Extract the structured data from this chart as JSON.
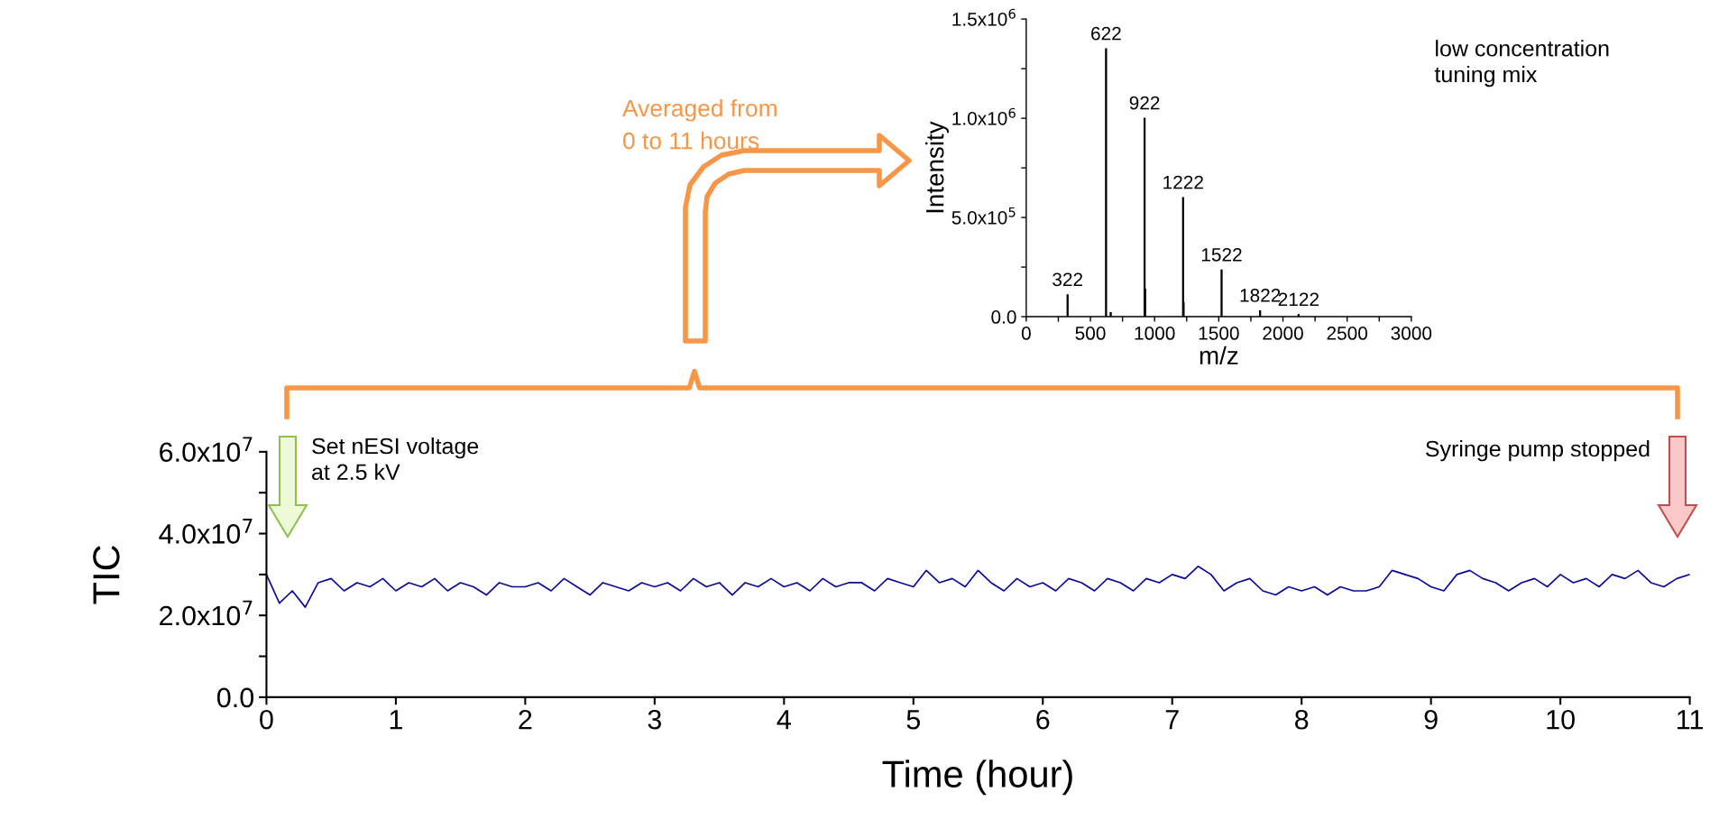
{
  "chart_data": [
    {
      "type": "line",
      "xlabel": "Time (hour)",
      "ylabel": "TIC",
      "x": [
        0.0,
        0.1,
        0.2,
        0.3,
        0.4,
        0.5,
        0.6,
        0.7,
        0.8,
        0.9,
        1.0,
        1.1,
        1.2,
        1.3,
        1.4,
        1.5,
        1.6,
        1.7,
        1.8,
        1.9,
        2.0,
        2.1,
        2.2,
        2.3,
        2.4,
        2.5,
        2.6,
        2.7,
        2.8,
        2.9,
        3.0,
        3.1,
        3.2,
        3.3,
        3.4,
        3.5,
        3.6,
        3.7,
        3.8,
        3.9,
        4.0,
        4.1,
        4.2,
        4.3,
        4.4,
        4.5,
        4.6,
        4.7,
        4.8,
        4.9,
        5.0,
        5.1,
        5.2,
        5.3,
        5.4,
        5.5,
        5.6,
        5.7,
        5.8,
        5.9,
        6.0,
        6.1,
        6.2,
        6.3,
        6.4,
        6.5,
        6.6,
        6.7,
        6.8,
        6.9,
        7.0,
        7.1,
        7.2,
        7.3,
        7.4,
        7.5,
        7.6,
        7.7,
        7.8,
        7.9,
        8.0,
        8.1,
        8.2,
        8.3,
        8.4,
        8.5,
        8.6,
        8.7,
        8.8,
        8.9,
        9.0,
        9.1,
        9.2,
        9.3,
        9.4,
        9.5,
        9.6,
        9.7,
        9.8,
        9.9,
        10.0,
        10.1,
        10.2,
        10.3,
        10.4,
        10.5,
        10.6,
        10.7,
        10.8,
        10.9,
        11.0
      ],
      "series": [
        {
          "color": "#0a0a9a",
          "values": [
            30000000.0,
            23000000.0,
            26000000.0,
            22000000.0,
            28000000.0,
            29000000.0,
            26000000.0,
            28000000.0,
            27000000.0,
            29000000.0,
            26000000.0,
            28000000.0,
            27000000.0,
            29000000.0,
            26000000.0,
            28000000.0,
            27000000.0,
            25000000.0,
            28000000.0,
            27000000.0,
            27000000.0,
            28000000.0,
            26000000.0,
            29000000.0,
            27000000.0,
            25000000.0,
            28000000.0,
            27000000.0,
            26000000.0,
            28000000.0,
            27000000.0,
            28000000.0,
            26000000.0,
            29000000.0,
            27000000.0,
            28000000.0,
            25000000.0,
            28000000.0,
            27000000.0,
            29000000.0,
            27000000.0,
            28000000.0,
            26000000.0,
            29000000.0,
            27000000.0,
            28000000.0,
            28000000.0,
            26000000.0,
            29000000.0,
            28000000.0,
            27000000.0,
            31000000.0,
            28000000.0,
            29000000.0,
            27000000.0,
            31000000.0,
            28000000.0,
            26000000.0,
            29000000.0,
            27000000.0,
            28000000.0,
            26000000.0,
            29000000.0,
            28000000.0,
            26000000.0,
            29000000.0,
            28000000.0,
            26000000.0,
            29000000.0,
            28000000.0,
            30000000.0,
            29000000.0,
            32000000.0,
            30000000.0,
            26000000.0,
            28000000.0,
            29000000.0,
            26000000.0,
            25000000.0,
            27000000.0,
            26000000.0,
            27000000.0,
            25000000.0,
            27000000.0,
            26000000.0,
            26000000.0,
            27000000.0,
            31000000.0,
            30000000.0,
            29000000.0,
            27000000.0,
            26000000.0,
            30000000.0,
            31000000.0,
            29000000.0,
            28000000.0,
            26000000.0,
            28000000.0,
            29000000.0,
            27000000.0,
            30000000.0,
            28000000.0,
            29000000.0,
            27000000.0,
            30000000.0,
            29000000.0,
            31000000.0,
            28000000.0,
            27000000.0,
            29000000.0,
            30000000.0
          ]
        }
      ],
      "xlim": [
        0,
        11
      ],
      "xticks": [
        0,
        1,
        2,
        3,
        4,
        5,
        6,
        7,
        8,
        9,
        10,
        11
      ],
      "ylim": [
        0,
        60000000.0
      ],
      "yticks": [
        {
          "value": 0,
          "label": "0.0"
        },
        {
          "value": 10000000.0,
          "label": null
        },
        {
          "value": 20000000.0,
          "label": "2.0x10$^{7}$"
        },
        {
          "value": 30000000.0,
          "label": null
        },
        {
          "value": 40000000.0,
          "label": "4.0x10$^{7}$"
        },
        {
          "value": 50000000.0,
          "label": null
        },
        {
          "value": 60000000.0,
          "label": "6.0x10$^{7}$"
        }
      ],
      "annotations": [
        "Set nESI voltage\nat 2.5 kV",
        "Syringe pump stopped",
        "Averaged from\n0 to 11 hours"
      ]
    },
    {
      "type": "bar",
      "xlabel": "m/z",
      "ylabel": "Intensity",
      "x": [
        322,
        622,
        658,
        922,
        926,
        1222,
        1226,
        1522,
        1822,
        2122
      ],
      "series": [
        {
          "color": "#000000",
          "values": [
            110000.0,
            1350000.0,
            20000.0,
            1000000.0,
            140000.0,
            600000.0,
            70000.0,
            235000.0,
            30000.0,
            10000.0
          ]
        }
      ],
      "xlim": [
        0,
        3000
      ],
      "xticks": [
        {
          "value": 0,
          "label": "0"
        },
        {
          "value": 250,
          "label": null
        },
        {
          "value": 500,
          "label": "500"
        },
        {
          "value": 750,
          "label": null
        },
        {
          "value": 1000,
          "label": "1000"
        },
        {
          "value": 1250,
          "label": null
        },
        {
          "value": 1500,
          "label": "1500"
        },
        {
          "value": 1750,
          "label": null
        },
        {
          "value": 2000,
          "label": "2000"
        },
        {
          "value": 2250,
          "label": null
        },
        {
          "value": 2500,
          "label": "2500"
        },
        {
          "value": 2750,
          "label": null
        },
        {
          "value": 3000,
          "label": "3000"
        }
      ],
      "ylim": [
        0,
        1500000.0
      ],
      "yticks": [
        {
          "value": 0,
          "label": "0.0"
        },
        {
          "value": 250000.0,
          "label": null
        },
        {
          "value": 500000.0,
          "label": "5.0x10$^{5}$"
        },
        {
          "value": 750000.0,
          "label": null
        },
        {
          "value": 1000000.0,
          "label": "1.0x10$^{6}$"
        },
        {
          "value": 1250000.0,
          "label": null
        },
        {
          "value": 1500000.0,
          "label": "1.5x10$^{6}$"
        }
      ],
      "annotations": [
        {
          "text": "322",
          "x": 322,
          "y": 110000.0
        },
        {
          "text": "622",
          "x": 622,
          "y": 1350000.0
        },
        {
          "text": "922",
          "x": 922,
          "y": 1000000.0
        },
        {
          "text": "1222",
          "x": 1222,
          "y": 600000.0
        },
        {
          "text": "1522",
          "x": 1522,
          "y": 235000.0
        },
        {
          "text": "1822",
          "x": 1822,
          "y": 30000.0
        },
        {
          "text": "2122",
          "x": 2122,
          "y": 10000.0
        },
        "low concentration\ntuning mix"
      ]
    }
  ]
}
